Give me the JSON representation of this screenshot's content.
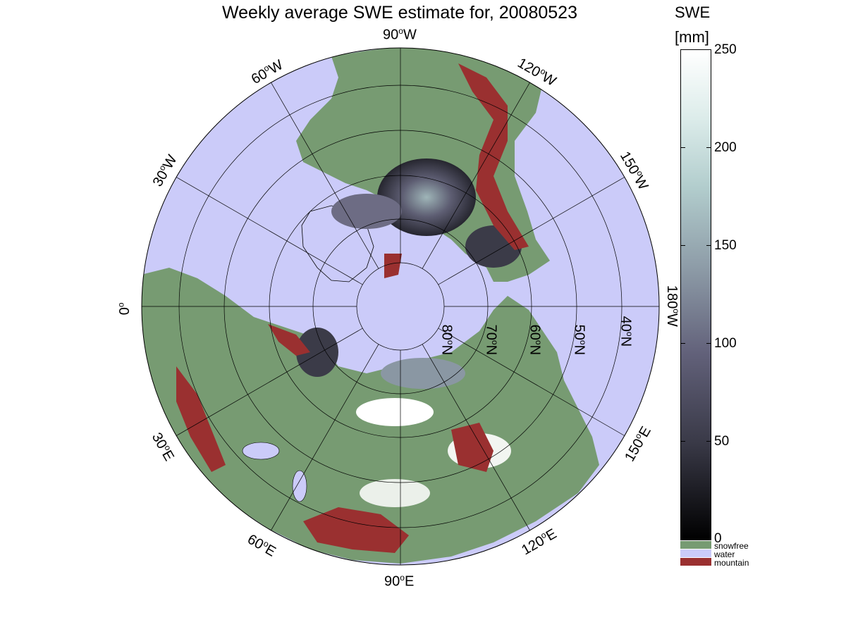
{
  "title": "Weekly average SWE estimate for, 20080523",
  "colorbar": {
    "title_line1": "SWE",
    "title_line2": "[mm]",
    "ticks": [
      "250",
      "200",
      "150",
      "100",
      "50",
      "0"
    ],
    "categories": [
      {
        "label": "snowfree",
        "color": "#779b72"
      },
      {
        "label": "water",
        "color": "#cbcbf9"
      },
      {
        "label": "mountain",
        "color": "#9a3030"
      }
    ]
  },
  "map": {
    "ocean_color": "#cbcbf9",
    "land_color": "#779b72",
    "longitude_labels": [
      {
        "deg": "90",
        "hem": "W",
        "name": "lon-90w"
      },
      {
        "deg": "120",
        "hem": "W",
        "name": "lon-120w"
      },
      {
        "deg": "150",
        "hem": "W",
        "name": "lon-150w"
      },
      {
        "deg": "180",
        "hem": "W",
        "name": "lon-180w"
      },
      {
        "deg": "150",
        "hem": "E",
        "name": "lon-150e"
      },
      {
        "deg": "120",
        "hem": "E",
        "name": "lon-120e"
      },
      {
        "deg": "90",
        "hem": "E",
        "name": "lon-90e"
      },
      {
        "deg": "60",
        "hem": "E",
        "name": "lon-60e"
      },
      {
        "deg": "30",
        "hem": "E",
        "name": "lon-30e"
      },
      {
        "deg": "0",
        "hem": "",
        "name": "lon-0"
      },
      {
        "deg": "30",
        "hem": "W",
        "name": "lon-30w"
      },
      {
        "deg": "60",
        "hem": "W",
        "name": "lon-60w"
      }
    ],
    "latitude_labels": [
      {
        "deg": "80",
        "hem": "N"
      },
      {
        "deg": "70",
        "hem": "N"
      },
      {
        "deg": "60",
        "hem": "N"
      },
      {
        "deg": "50",
        "hem": "N"
      },
      {
        "deg": "40",
        "hem": "N"
      }
    ]
  }
}
